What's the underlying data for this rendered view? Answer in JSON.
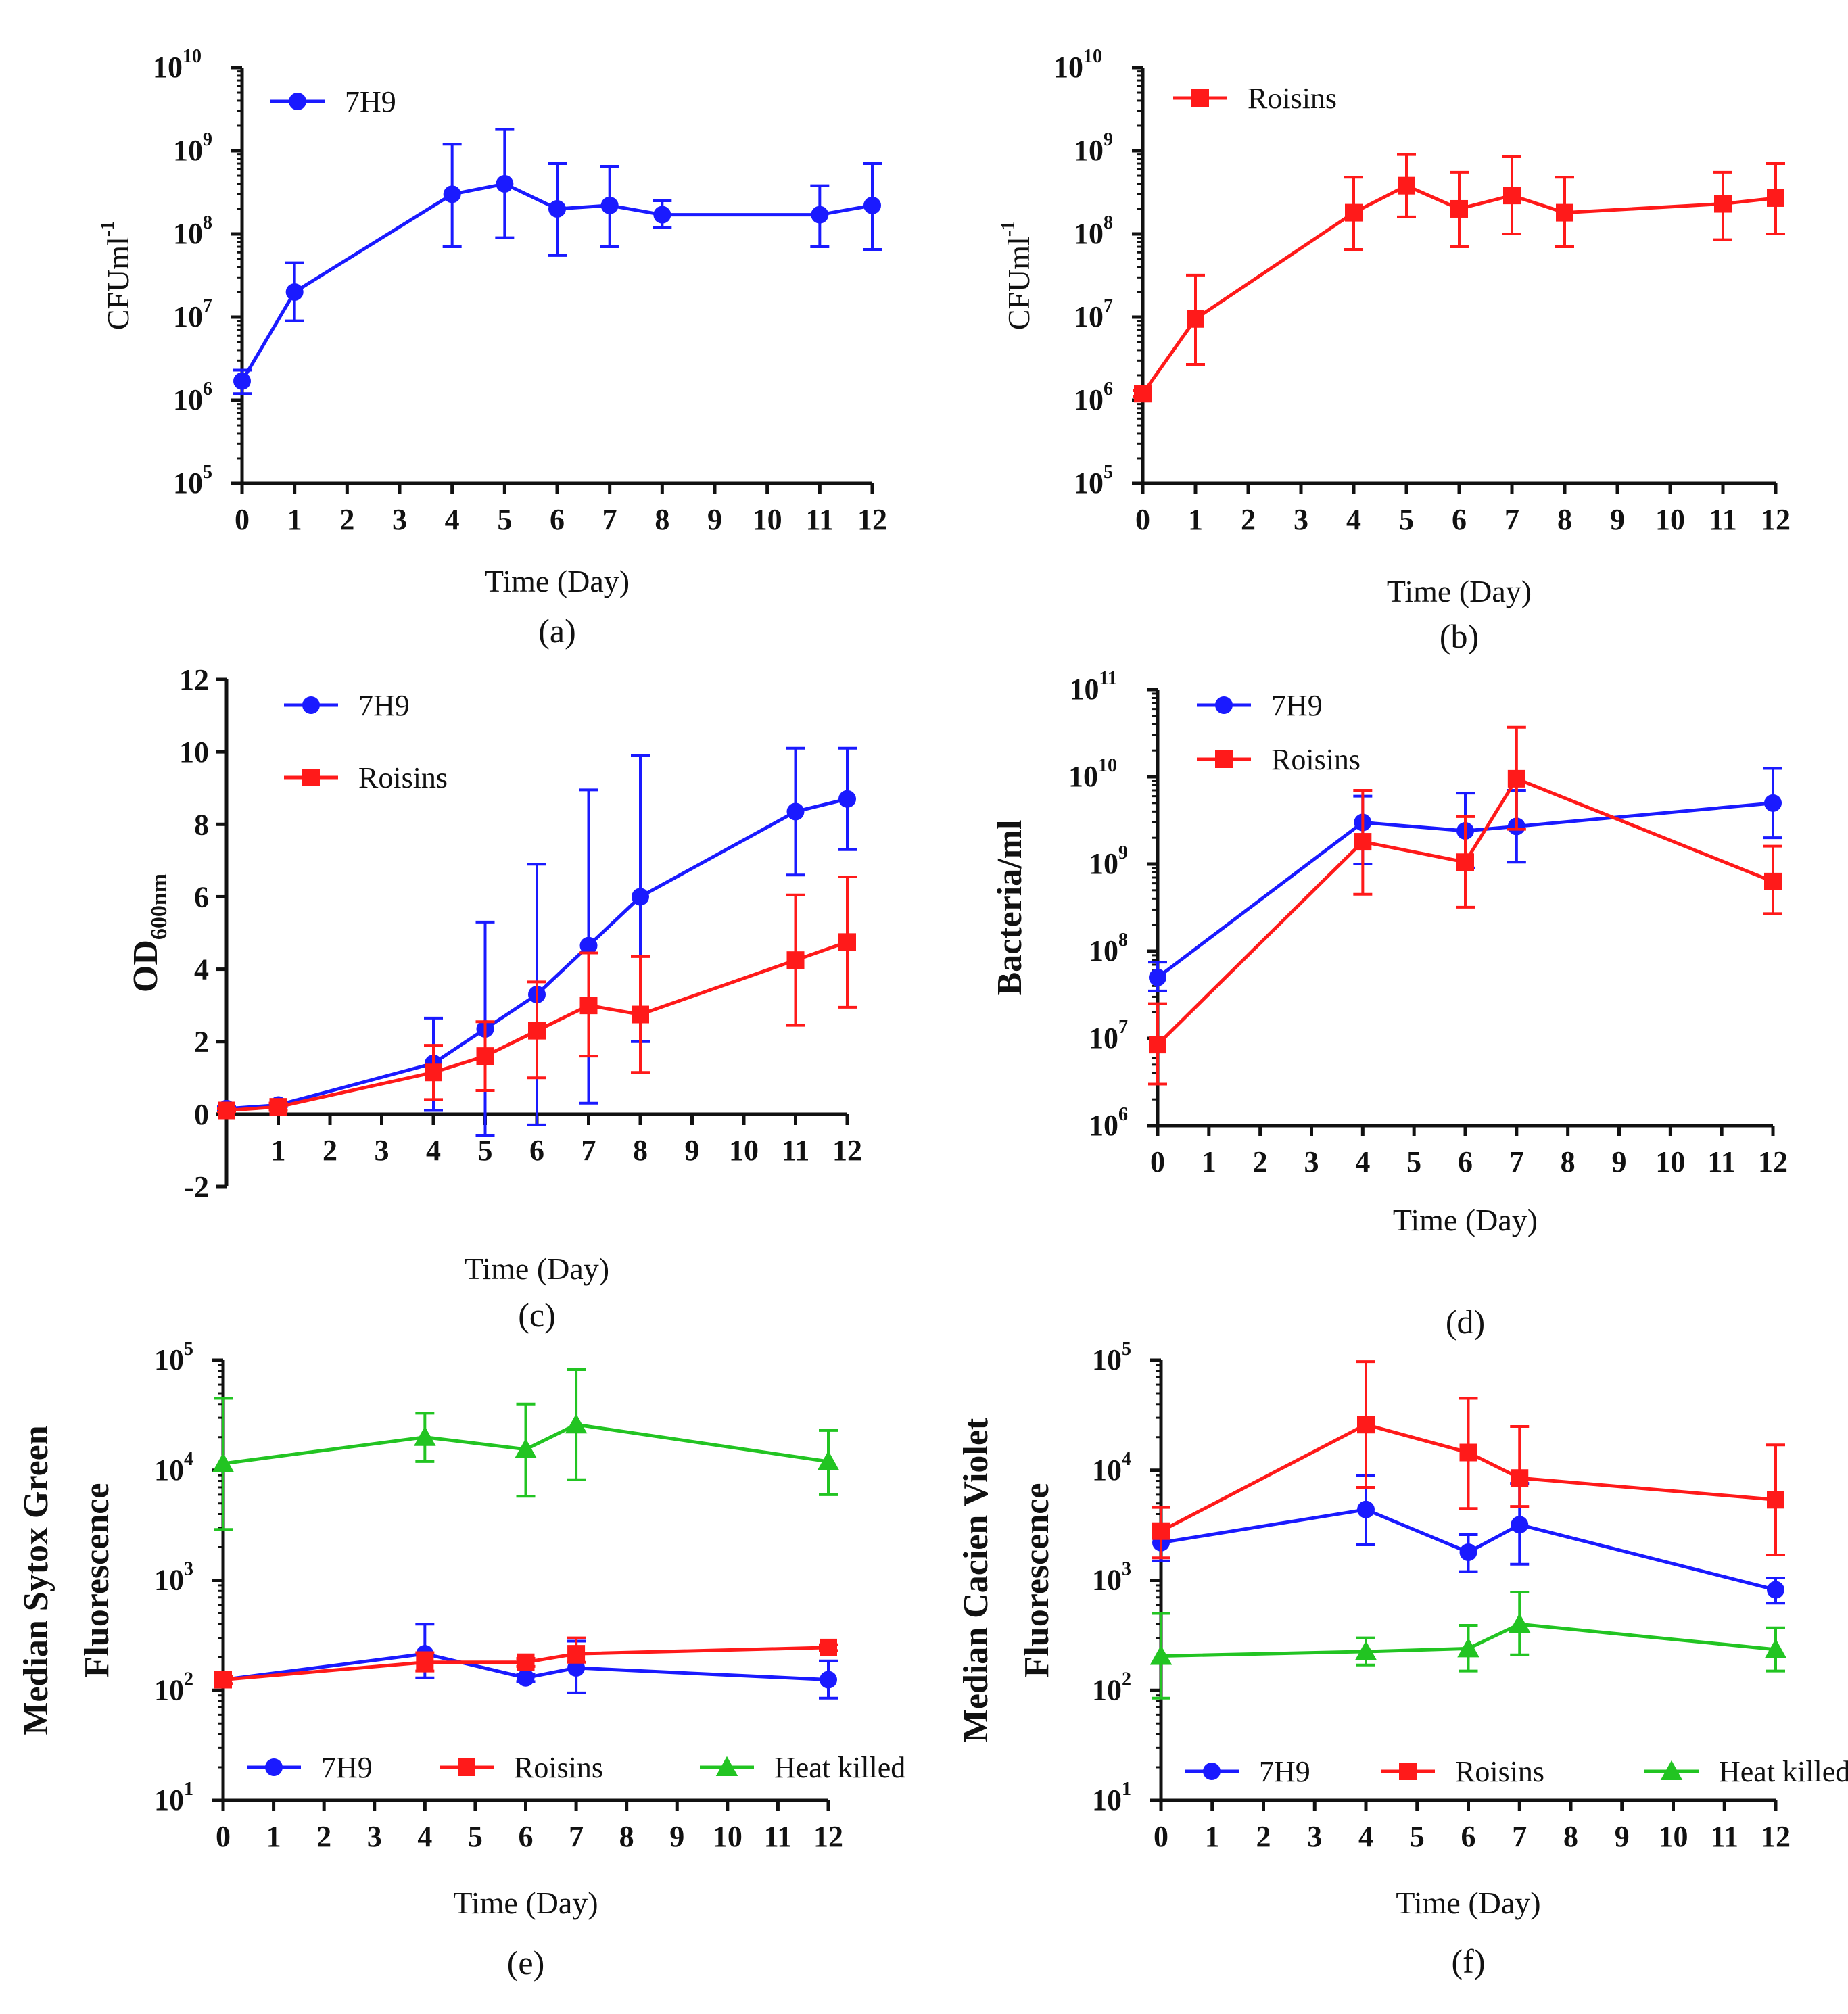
{
  "colors": {
    "7H9": "#1a1aff",
    "Roisins": "#ff1a1a",
    "Heat killed": "#22c422",
    "axis": "#111111"
  },
  "chart_data": [
    {
      "type": "line",
      "log": true,
      "panel": "(a)",
      "xlabel": "Time (Day)",
      "ylabel": "CFUml",
      "ylabel_sup": "-1",
      "xlim": [
        0,
        12
      ],
      "xticks": [
        0,
        1,
        2,
        3,
        4,
        5,
        6,
        7,
        8,
        9,
        10,
        11,
        12
      ],
      "ylim": [
        100000,
        10000000000
      ],
      "yticks": [
        5,
        6,
        7,
        8,
        9,
        10
      ],
      "legend": {
        "position": "top-left",
        "entries": [
          "7H9"
        ]
      },
      "series": [
        {
          "name": "7H9",
          "marker": "circle",
          "x": [
            0,
            1,
            4,
            5,
            6,
            7,
            8,
            11,
            12
          ],
          "y": [
            1700000,
            20000000,
            300000000,
            400000000,
            200000000,
            220000000,
            170000000,
            170000000,
            220000000
          ],
          "err_low": [
            1200000,
            9000000,
            70000000,
            90000000,
            55000000,
            70000000,
            120000000,
            70000000,
            65000000
          ],
          "err_high": [
            2300000,
            45000000,
            1200000000,
            1800000000,
            700000000,
            650000000,
            250000000,
            380000000,
            700000000
          ]
        }
      ]
    },
    {
      "type": "line",
      "log": true,
      "panel": "(b)",
      "xlabel": "Time (Day)",
      "ylabel": "CFUml",
      "ylabel_sup": "-1",
      "xlim": [
        0,
        12
      ],
      "xticks": [
        0,
        1,
        2,
        3,
        4,
        5,
        6,
        7,
        8,
        9,
        10,
        11,
        12
      ],
      "ylim": [
        100000,
        10000000000
      ],
      "yticks": [
        5,
        6,
        7,
        8,
        9,
        10
      ],
      "legend": {
        "position": "top-left",
        "entries": [
          "Roisins"
        ]
      },
      "series": [
        {
          "name": "Roisins",
          "marker": "square",
          "x": [
            0,
            1,
            4,
            5,
            6,
            7,
            8,
            11,
            12
          ],
          "y": [
            1200000,
            9500000,
            180000000,
            380000000,
            200000000,
            290000000,
            180000000,
            230000000,
            270000000
          ],
          "err_low": [
            1100000,
            2700000,
            65000000,
            160000000,
            70000000,
            100000000,
            70000000,
            85000000,
            100000000
          ],
          "err_high": [
            1300000,
            32000000,
            480000000,
            900000000,
            550000000,
            850000000,
            480000000,
            550000000,
            700000000
          ]
        }
      ]
    },
    {
      "type": "line",
      "log": false,
      "panel": "(c)",
      "xlabel": "Time (Day)",
      "ylabel": "OD",
      "ylabel_sub": "600nm",
      "xlim": [
        0,
        12
      ],
      "xticks": [
        1,
        2,
        3,
        4,
        5,
        6,
        7,
        8,
        9,
        10,
        11,
        12
      ],
      "ylim": [
        -2,
        12
      ],
      "yticks": [
        -2,
        0,
        2,
        4,
        6,
        8,
        10,
        12
      ],
      "legend": {
        "position": "top-left",
        "entries": [
          "7H9",
          "Roisins"
        ]
      },
      "series": [
        {
          "name": "7H9",
          "marker": "circle",
          "x": [
            0,
            1,
            4,
            5,
            6,
            7,
            8,
            11,
            12
          ],
          "y": [
            0.15,
            0.25,
            1.4,
            2.35,
            3.3,
            4.65,
            6.0,
            8.35,
            8.7
          ],
          "err_low": [
            0.1,
            0.2,
            0.1,
            -0.6,
            -0.3,
            0.3,
            2.0,
            6.6,
            7.3
          ],
          "err_high": [
            0.2,
            0.3,
            2.65,
            5.3,
            6.9,
            8.95,
            9.9,
            10.1,
            10.1
          ]
        },
        {
          "name": "Roisins",
          "marker": "square",
          "x": [
            0,
            1,
            4,
            5,
            6,
            7,
            8,
            11,
            12
          ],
          "y": [
            0.1,
            0.2,
            1.15,
            1.6,
            2.3,
            3.0,
            2.75,
            4.25,
            4.75
          ],
          "err_low": [
            0.05,
            0.1,
            0.4,
            0.65,
            1.0,
            1.6,
            1.15,
            2.45,
            2.95
          ],
          "err_high": [
            0.15,
            0.3,
            1.9,
            2.55,
            3.65,
            4.45,
            4.35,
            6.05,
            6.55
          ]
        }
      ]
    },
    {
      "type": "line",
      "log": true,
      "panel": "(d)",
      "xlabel": "Time (Day)",
      "ylabel": "Bacteria/ml",
      "xlim": [
        0,
        12
      ],
      "xticks": [
        0,
        1,
        2,
        3,
        4,
        5,
        6,
        7,
        8,
        9,
        10,
        11,
        12
      ],
      "ylim": [
        1000000,
        100000000000
      ],
      "yticks": [
        6,
        7,
        8,
        9,
        10,
        11
      ],
      "legend": {
        "position": "top-left",
        "entries": [
          "7H9",
          "Roisins"
        ]
      },
      "series": [
        {
          "name": "7H9",
          "marker": "circle",
          "x": [
            0,
            4,
            6,
            7,
            12
          ],
          "y": [
            50000000,
            3000000000,
            2400000000,
            2700000000,
            5000000000
          ],
          "err_low": [
            35000000,
            1000000000,
            900000000,
            1050000000,
            2000000000
          ],
          "err_high": [
            75000000,
            6000000000,
            6500000000,
            7000000000,
            12500000000
          ]
        },
        {
          "name": "Roisins",
          "marker": "square",
          "x": [
            0,
            4,
            6,
            7,
            12
          ],
          "y": [
            8500000,
            1800000000,
            1050000000,
            9500000000,
            630000000
          ],
          "err_low": [
            3000000,
            450000000,
            320000000,
            2500000000,
            270000000
          ],
          "err_high": [
            25000000,
            7000000000,
            3500000000,
            37000000000,
            1600000000
          ]
        }
      ]
    },
    {
      "type": "line",
      "log": true,
      "panel": "(e)",
      "xlabel": "Time (Day)",
      "ylabel_lines": [
        "Median Sytox Green",
        "Fluorescence"
      ],
      "xlim": [
        0,
        12
      ],
      "xticks": [
        0,
        1,
        2,
        3,
        4,
        5,
        6,
        7,
        8,
        9,
        10,
        11,
        12
      ],
      "ylim": [
        10,
        100000
      ],
      "yticks": [
        1,
        2,
        3,
        4,
        5
      ],
      "legend": {
        "position": "bottom",
        "entries": [
          "7H9",
          "Roisins",
          "Heat killed"
        ]
      },
      "series": [
        {
          "name": "7H9",
          "marker": "circle",
          "x": [
            0,
            4,
            6,
            7,
            12
          ],
          "y": [
            125,
            215,
            130,
            160,
            125
          ],
          "err_low": [
            115,
            130,
            120,
            95,
            85
          ],
          "err_high": [
            135,
            400,
            140,
            280,
            185
          ]
        },
        {
          "name": "Roisins",
          "marker": "square",
          "x": [
            0,
            4,
            6,
            7,
            12
          ],
          "y": [
            125,
            180,
            180,
            215,
            245
          ],
          "err_low": [
            115,
            150,
            165,
            180,
            230
          ],
          "err_high": [
            135,
            220,
            195,
            300,
            260
          ]
        },
        {
          "name": "Heat killed",
          "marker": "triangle",
          "x": [
            0,
            4,
            6,
            7,
            12
          ],
          "y": [
            11500,
            20000,
            15500,
            26000,
            12000
          ],
          "err_low": [
            2900,
            12000,
            5800,
            8200,
            6000
          ],
          "err_high": [
            45000,
            33000,
            40000,
            82000,
            23000
          ]
        }
      ]
    },
    {
      "type": "line",
      "log": true,
      "panel": "(f)",
      "xlabel": "Time (Day)",
      "ylabel_lines": [
        "Median Cacien Violet",
        "Fluorescence"
      ],
      "xlim": [
        0,
        12
      ],
      "xticks": [
        0,
        1,
        2,
        3,
        4,
        5,
        6,
        7,
        8,
        9,
        10,
        11,
        12
      ],
      "ylim": [
        10,
        100000
      ],
      "yticks": [
        1,
        2,
        3,
        4,
        5
      ],
      "legend": {
        "position": "bottom",
        "entries": [
          "7H9",
          "Roisins",
          "Heat killed"
        ]
      },
      "series": [
        {
          "name": "7H9",
          "marker": "circle",
          "x": [
            0,
            4,
            6,
            7,
            12
          ],
          "y": [
            2200,
            4400,
            1800,
            3200,
            820
          ],
          "err_low": [
            1500,
            2100,
            1200,
            1400,
            620
          ],
          "err_high": [
            3000,
            9000,
            2600,
            7600,
            1050
          ]
        },
        {
          "name": "Roisins",
          "marker": "square",
          "x": [
            0,
            4,
            6,
            7,
            12
          ],
          "y": [
            2800,
            26000,
            14500,
            8500,
            5400
          ],
          "err_low": [
            1600,
            7000,
            4500,
            4700,
            1700
          ],
          "err_high": [
            4600,
            97000,
            45000,
            25000,
            17000
          ]
        },
        {
          "name": "Heat killed",
          "marker": "triangle",
          "x": [
            0,
            4,
            6,
            7,
            12
          ],
          "y": [
            205,
            225,
            240,
            400,
            235
          ],
          "err_low": [
            85,
            170,
            150,
            210,
            150
          ],
          "err_high": [
            500,
            300,
            390,
            780,
            370
          ]
        }
      ]
    }
  ]
}
